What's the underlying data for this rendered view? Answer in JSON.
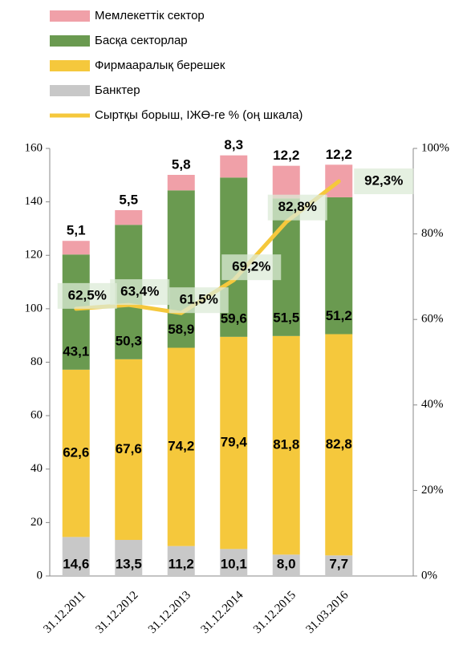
{
  "chart_data": {
    "type": "bar",
    "categories": [
      "31.12.2011",
      "31.12.2012",
      "31.12.2013",
      "31.12.2014",
      "31.12.2015",
      "31.03.2016"
    ],
    "stacked": true,
    "series": [
      {
        "name": "Банктер",
        "color": "#c8c8c8",
        "values": [
          14.6,
          13.5,
          11.2,
          10.1,
          8.0,
          7.7
        ],
        "value_labels": [
          "14,6",
          "13,5",
          "11,2",
          "10,1",
          "8,0",
          "7,7"
        ]
      },
      {
        "name": "Фирмааралық берешек",
        "color": "#f5c83c",
        "values": [
          62.6,
          67.6,
          74.2,
          79.4,
          81.8,
          82.8
        ],
        "value_labels": [
          "62,6",
          "67,6",
          "74,2",
          "79,4",
          "81,8",
          "82,8"
        ]
      },
      {
        "name": "Басқа  секторлар",
        "color": "#6a9a50",
        "values": [
          43.1,
          50.3,
          58.9,
          59.6,
          51.5,
          51.2
        ],
        "value_labels": [
          "43,1",
          "50,3",
          "58,9",
          "59,6",
          "51,5",
          "51,2"
        ]
      },
      {
        "name": "Мемлекеттік сектор",
        "color": "#f0a0a8",
        "values": [
          5.1,
          5.5,
          5.8,
          8.3,
          12.2,
          12.2
        ],
        "value_labels": [
          "5,1",
          "5,5",
          "5,8",
          "8,3",
          "12,2",
          "12,2"
        ]
      },
      {
        "name": "Сыртқы  борыш, ІЖӨ-ге %  (оң шкала)",
        "type": "line",
        "axis": "y2",
        "color": "#f5c83c",
        "values": [
          62.5,
          63.4,
          61.5,
          69.2,
          82.8,
          92.3
        ],
        "value_labels": [
          "62,5%",
          "63,4%",
          "61,5%",
          "69,2%",
          "82,8%",
          "92,3%"
        ]
      }
    ],
    "ylim": [
      0,
      160
    ],
    "yticks": [
      0,
      20,
      40,
      60,
      80,
      100,
      120,
      140,
      160
    ],
    "y2lim": [
      0,
      100
    ],
    "y2ticks": [
      {
        "value": 0,
        "label": "0%"
      },
      {
        "value": 20,
        "label": "20%"
      },
      {
        "value": 40,
        "label": "40%"
      },
      {
        "value": 60,
        "label": "60%"
      },
      {
        "value": 80,
        "label": "80%"
      },
      {
        "value": 100,
        "label": "100%"
      }
    ]
  }
}
